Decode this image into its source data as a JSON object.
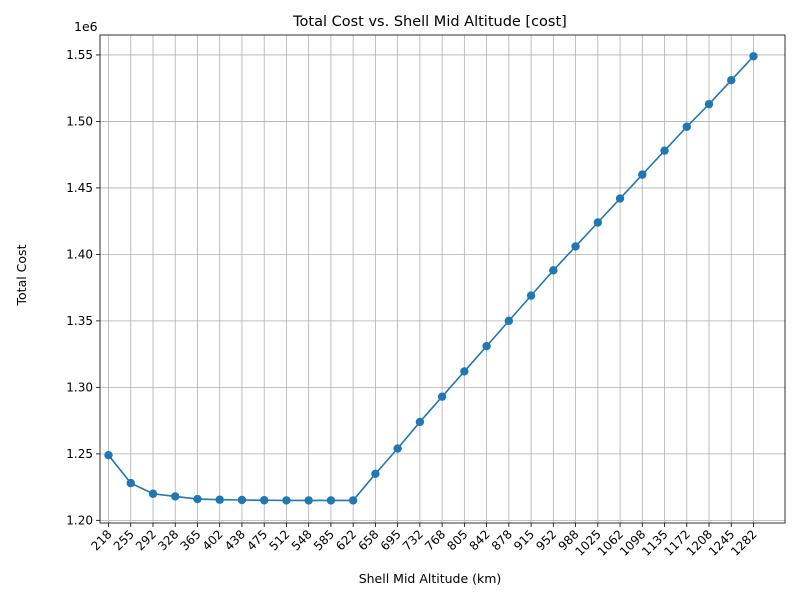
{
  "chart_data": {
    "type": "line",
    "title": "Total Cost vs. Shell Mid Altitude [cost]",
    "xlabel": "Shell Mid Altitude (km)",
    "ylabel": "Total Cost",
    "y_scale_label": "1e6",
    "grid": true,
    "ylim": [
      1.198,
      1.565
    ],
    "y_ticks": [
      1.2,
      1.25,
      1.3,
      1.35,
      1.4,
      1.45,
      1.5,
      1.55
    ],
    "y_tick_labels": [
      "1.20",
      "1.25",
      "1.30",
      "1.35",
      "1.40",
      "1.45",
      "1.50",
      "1.55"
    ],
    "categories": [
      "218",
      "255",
      "292",
      "328",
      "365",
      "402",
      "438",
      "475",
      "512",
      "548",
      "585",
      "622",
      "658",
      "695",
      "732",
      "768",
      "805",
      "842",
      "878",
      "915",
      "952",
      "988",
      "1025",
      "1062",
      "1098",
      "1135",
      "1172",
      "1208",
      "1245",
      "1282"
    ],
    "series": [
      {
        "color": "#1f77b4",
        "values": [
          1.249,
          1.228,
          1.22,
          1.218,
          1.216,
          1.2155,
          1.2153,
          1.2151,
          1.215,
          1.215,
          1.215,
          1.215,
          1.235,
          1.254,
          1.274,
          1.293,
          1.312,
          1.331,
          1.35,
          1.369,
          1.388,
          1.406,
          1.424,
          1.442,
          1.46,
          1.478,
          1.496,
          1.513,
          1.531,
          1.549
        ]
      }
    ]
  }
}
